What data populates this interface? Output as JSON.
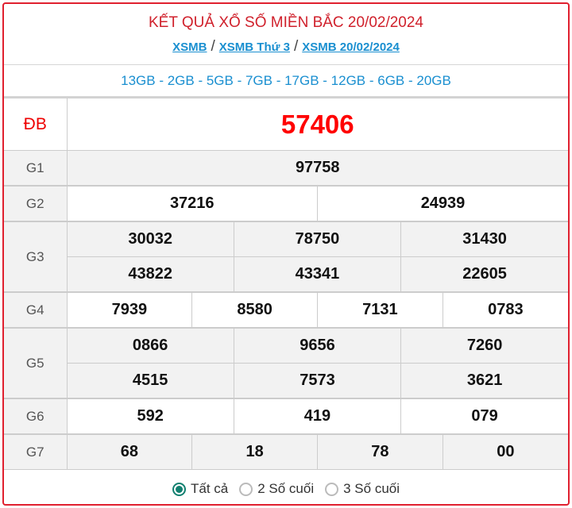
{
  "header": {
    "title": "KẾT QUẢ XỔ SỐ MIỀN BẮC 20/02/2024",
    "breadcrumbs": [
      "XSMB",
      "XSMB Thứ 3",
      "XSMB 20/02/2024"
    ],
    "separator": "/"
  },
  "codes": "13GB - 2GB - 5GB - 7GB - 17GB - 12GB - 6GB - 20GB",
  "prizes": {
    "db": {
      "label": "ĐB",
      "values": [
        "57406"
      ]
    },
    "g1": {
      "label": "G1",
      "values": [
        "97758"
      ]
    },
    "g2": {
      "label": "G2",
      "values": [
        "37216",
        "24939"
      ]
    },
    "g3": {
      "label": "G3",
      "values": [
        "30032",
        "78750",
        "31430",
        "43822",
        "43341",
        "22605"
      ]
    },
    "g4": {
      "label": "G4",
      "values": [
        "7939",
        "8580",
        "7131",
        "0783"
      ]
    },
    "g5": {
      "label": "G5",
      "values": [
        "0866",
        "9656",
        "7260",
        "4515",
        "7573",
        "3621"
      ]
    },
    "g6": {
      "label": "G6",
      "values": [
        "592",
        "419",
        "079"
      ]
    },
    "g7": {
      "label": "G7",
      "values": [
        "68",
        "18",
        "78",
        "00"
      ]
    }
  },
  "filters": {
    "options": [
      "Tất cả",
      "2 Số cuối",
      "3 Số cuối"
    ],
    "selected": "Tất cả"
  },
  "colors": {
    "accent": "#e0202f",
    "link": "#1a8fd0",
    "radio": "#128070"
  }
}
